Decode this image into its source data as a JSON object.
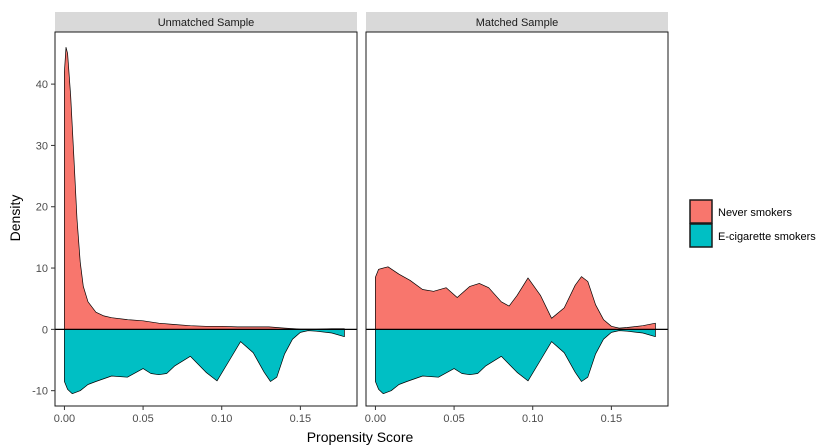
{
  "chart_data": {
    "type": "area",
    "title": "",
    "xlabel": "Propensity Score",
    "ylabel": "Density",
    "xlim": [
      -0.006,
      0.186
    ],
    "ylim": [
      -12.5,
      48.5
    ],
    "x_ticks": [
      0.0,
      0.05,
      0.1,
      0.15
    ],
    "x_tick_labels": [
      "0.00",
      "0.05",
      "0.10",
      "0.15"
    ],
    "y_ticks": [
      -10,
      0,
      10,
      20,
      30,
      40
    ],
    "y_tick_labels": [
      "-10",
      "0",
      "10",
      "20",
      "30",
      "40"
    ],
    "grid": false,
    "legend_position": "right",
    "colors": {
      "never": "#F8766D",
      "ecig": "#00BFC4",
      "strip": "#D9D9D9",
      "line": "#000000"
    },
    "legend": [
      {
        "name": "Never smokers",
        "color": "#F8766D"
      },
      {
        "name": "E-cigarette smokers",
        "color": "#00BFC4"
      }
    ],
    "panels": [
      {
        "label": "Unmatched Sample",
        "series": [
          {
            "name": "Never smokers",
            "x": [
              0.0,
              0.001,
              0.002,
              0.004,
              0.006,
              0.008,
              0.01,
              0.012,
              0.015,
              0.02,
              0.025,
              0.03,
              0.04,
              0.05,
              0.06,
              0.07,
              0.08,
              0.09,
              0.1,
              0.11,
              0.12,
              0.13,
              0.14,
              0.15,
              0.16,
              0.17,
              0.178
            ],
            "values": [
              42,
              46,
              45,
              38,
              28,
              18,
              11,
              7,
              4.5,
              2.8,
              2.2,
              1.9,
              1.6,
              1.4,
              1.0,
              0.8,
              0.6,
              0.5,
              0.5,
              0.4,
              0.4,
              0.4,
              0.2,
              0.05,
              0.05,
              0.1,
              0.1
            ]
          },
          {
            "name": "E-cigarette smokers",
            "x": [
              0.0,
              0.002,
              0.005,
              0.01,
              0.015,
              0.02,
              0.03,
              0.04,
              0.05,
              0.055,
              0.06,
              0.065,
              0.07,
              0.08,
              0.09,
              0.097,
              0.105,
              0.112,
              0.12,
              0.127,
              0.131,
              0.135,
              0.14,
              0.145,
              0.15,
              0.155,
              0.16,
              0.17,
              0.178
            ],
            "values": [
              -8.5,
              -9.8,
              -10.5,
              -10.0,
              -9.0,
              -8.5,
              -7.6,
              -7.8,
              -6.4,
              -7.2,
              -7.4,
              -7.2,
              -6.0,
              -4.4,
              -7.0,
              -8.4,
              -5.0,
              -2.0,
              -3.8,
              -7.0,
              -8.5,
              -7.8,
              -4.0,
              -1.6,
              -0.5,
              -0.2,
              -0.3,
              -0.6,
              -1.2
            ]
          }
        ]
      },
      {
        "label": "Matched Sample",
        "series": [
          {
            "name": "Never smokers",
            "x": [
              0.0,
              0.002,
              0.008,
              0.015,
              0.022,
              0.03,
              0.037,
              0.045,
              0.052,
              0.06,
              0.066,
              0.072,
              0.08,
              0.085,
              0.09,
              0.097,
              0.105,
              0.112,
              0.12,
              0.127,
              0.131,
              0.135,
              0.14,
              0.145,
              0.15,
              0.155,
              0.16,
              0.17,
              0.178
            ],
            "values": [
              8.5,
              9.8,
              10.2,
              9.0,
              8.0,
              6.5,
              6.2,
              6.8,
              5.2,
              7.0,
              7.5,
              6.8,
              4.5,
              3.8,
              5.5,
              8.4,
              5.5,
              1.8,
              3.5,
              7.2,
              8.6,
              7.8,
              4.0,
              1.6,
              0.5,
              0.2,
              0.3,
              0.6,
              1.0
            ]
          },
          {
            "name": "E-cigarette smokers",
            "x": [
              0.0,
              0.002,
              0.005,
              0.01,
              0.015,
              0.02,
              0.03,
              0.04,
              0.05,
              0.055,
              0.06,
              0.065,
              0.07,
              0.08,
              0.09,
              0.097,
              0.105,
              0.112,
              0.12,
              0.127,
              0.131,
              0.135,
              0.14,
              0.145,
              0.15,
              0.155,
              0.16,
              0.17,
              0.178
            ],
            "values": [
              -8.5,
              -9.8,
              -10.5,
              -10.0,
              -9.0,
              -8.5,
              -7.6,
              -7.8,
              -6.4,
              -7.2,
              -7.4,
              -7.2,
              -6.0,
              -4.4,
              -7.0,
              -8.4,
              -5.0,
              -2.0,
              -3.8,
              -7.0,
              -8.5,
              -7.8,
              -4.0,
              -1.6,
              -0.5,
              -0.2,
              -0.3,
              -0.6,
              -1.2
            ]
          }
        ]
      }
    ]
  }
}
